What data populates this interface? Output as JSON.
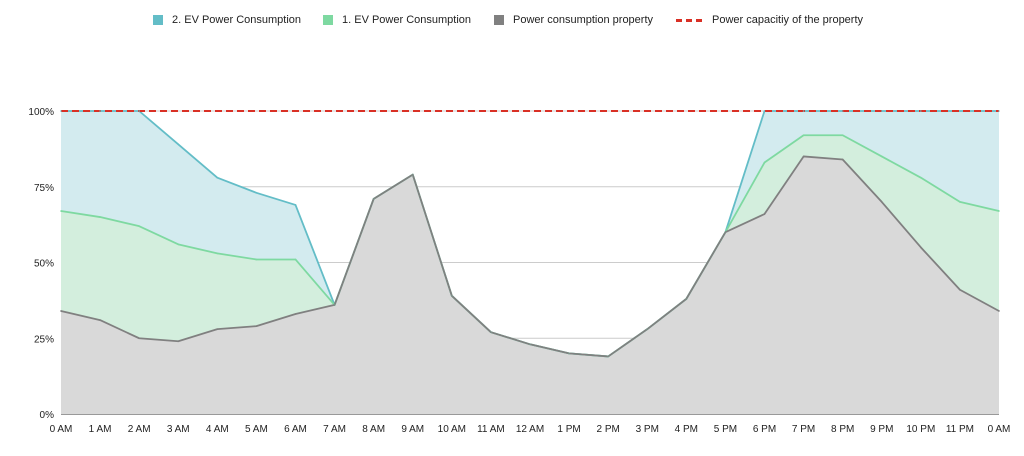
{
  "chart_data": {
    "type": "area",
    "title": "",
    "xlabel": "",
    "ylabel": "",
    "ylim": [
      0,
      1
    ],
    "y_tick_labels": [
      "0%",
      "25%",
      "50%",
      "75%",
      "100%"
    ],
    "y_ticks": [
      0,
      0.25,
      0.5,
      0.75,
      1.0
    ],
    "grid": true,
    "legend_position": "top",
    "categories": [
      "0 AM",
      "1 AM",
      "2 AM",
      "3 AM",
      "4 AM",
      "5 AM",
      "6 AM",
      "7 AM",
      "8 AM",
      "9 AM",
      "10 AM",
      "11 AM",
      "12 AM",
      "1 PM",
      "2 PM",
      "3 PM",
      "4 PM",
      "5 PM",
      "6 PM",
      "7 PM",
      "8 PM",
      "9 PM",
      "10 PM",
      "11 PM",
      "0 AM"
    ],
    "series": [
      {
        "name": "2. EV Power Consumption",
        "color": "#63bdc7",
        "fill": "#d3ebef",
        "values": [
          1.0,
          1.0,
          1.0,
          0.89,
          0.78,
          0.73,
          0.69,
          0.36,
          0.71,
          0.79,
          0.39,
          0.27,
          0.23,
          0.2,
          0.19,
          0.28,
          0.38,
          0.6,
          1.0,
          1.0,
          1.0,
          1.0,
          1.0,
          1.0,
          1.0
        ]
      },
      {
        "name": "1. EV Power Consumption",
        "color": "#7ed9a1",
        "fill": "#d3eedd",
        "values": [
          0.67,
          0.65,
          0.62,
          0.56,
          0.53,
          0.51,
          0.51,
          0.36,
          0.71,
          0.79,
          0.39,
          0.27,
          0.23,
          0.2,
          0.19,
          0.28,
          0.38,
          0.6,
          0.83,
          0.92,
          0.92,
          0.85,
          0.78,
          0.7,
          0.67
        ]
      },
      {
        "name": "Power consumption property",
        "color": "#808080",
        "fill": "#d9d9d9",
        "values": [
          0.34,
          0.31,
          0.25,
          0.24,
          0.28,
          0.29,
          0.33,
          0.36,
          0.71,
          0.79,
          0.39,
          0.27,
          0.23,
          0.2,
          0.19,
          0.28,
          0.38,
          0.6,
          0.66,
          0.85,
          0.84,
          0.7,
          0.55,
          0.41,
          0.34
        ]
      },
      {
        "name": "Power capacitiy of the property",
        "color": "#d93025",
        "type": "dashed-line",
        "values": [
          1.0,
          1.0,
          1.0,
          1.0,
          1.0,
          1.0,
          1.0,
          1.0,
          1.0,
          1.0,
          1.0,
          1.0,
          1.0,
          1.0,
          1.0,
          1.0,
          1.0,
          1.0,
          1.0,
          1.0,
          1.0,
          1.0,
          1.0,
          1.0,
          1.0
        ]
      }
    ]
  },
  "legend": [
    {
      "label": "2. EV Power Consumption",
      "color": "#63bdc7"
    },
    {
      "label": "1. EV Power Consumption",
      "color": "#7ed9a1"
    },
    {
      "label": "Power consumption property",
      "color": "#808080"
    },
    {
      "label": "Power capacitiy of the property",
      "color": "#d93025"
    }
  ]
}
